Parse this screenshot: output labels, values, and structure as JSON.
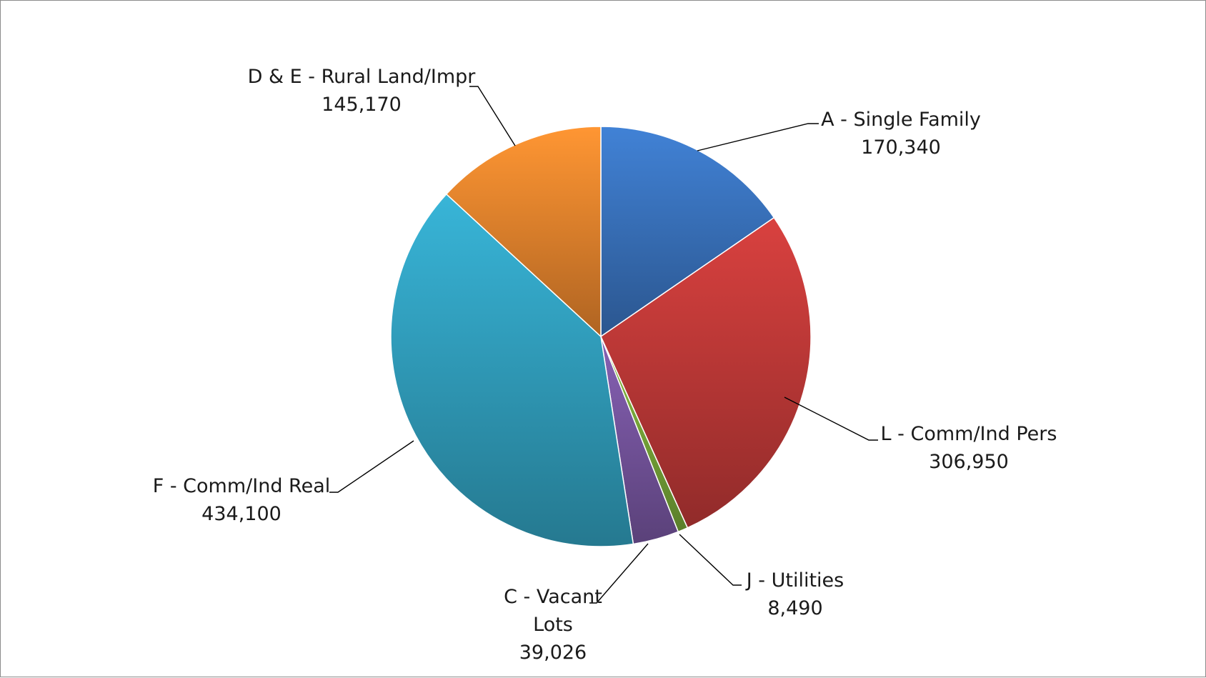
{
  "chart_data": {
    "type": "pie",
    "title": "",
    "slices": [
      {
        "category": "A - Single Family",
        "value": 170340,
        "value_label": "170,340",
        "color": "#3c78c6"
      },
      {
        "category": "L - Comm/Ind Pers",
        "value": 306950,
        "value_label": "306,950",
        "color": "#c93c3a"
      },
      {
        "category": "J - Utilities",
        "value": 8490,
        "value_label": "8,490",
        "color": "#7fb13c"
      },
      {
        "category": "C - Vacant Lots",
        "category_lines": [
          "C - Vacant",
          "Lots"
        ],
        "value": 39026,
        "value_label": "39,026",
        "color": "#7d5aa8"
      },
      {
        "category": "F - Comm/Ind Real",
        "value": 434100,
        "value_label": "434,100",
        "color": "#34a8c8"
      },
      {
        "category": "D & E - Rural Land/Impr",
        "value": 145170,
        "value_label": "145,170",
        "color": "#f38b2f"
      }
    ],
    "start_angle_deg": 0,
    "direction": "clockwise",
    "legend": "none",
    "data_labels": "outside with leader lines",
    "style": "3d-shaded"
  }
}
